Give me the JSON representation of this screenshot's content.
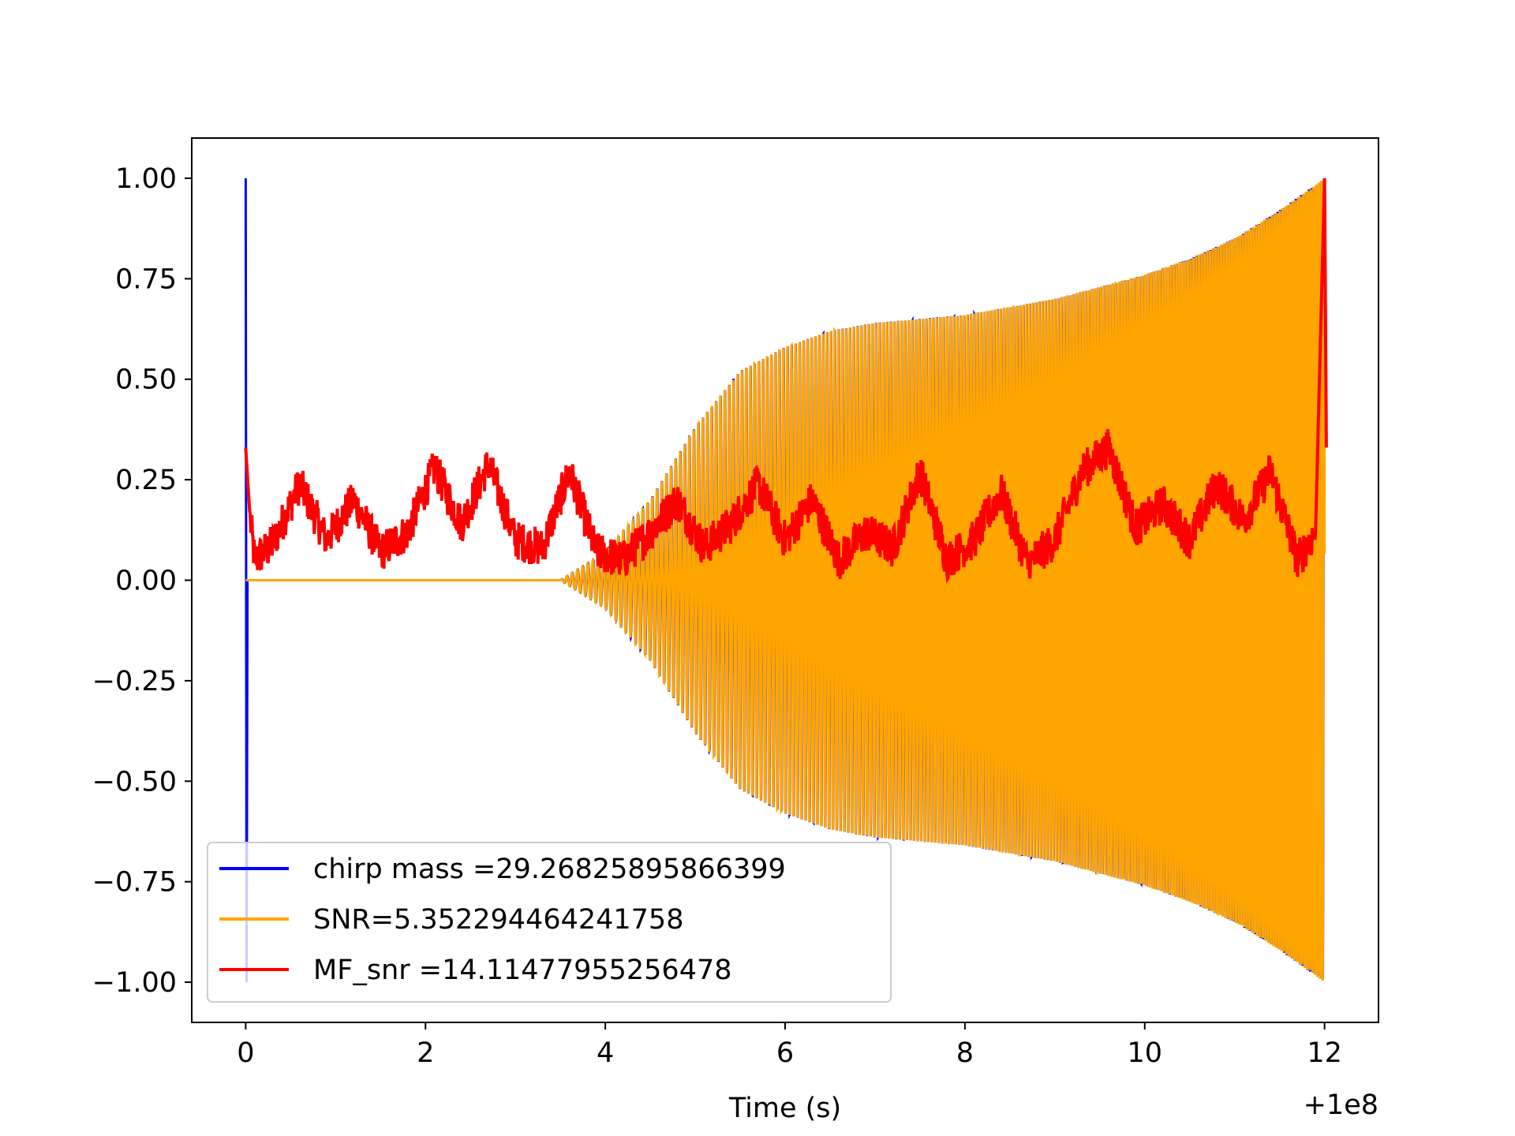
{
  "chart_data": {
    "type": "line",
    "title": "",
    "xlabel": "Time (s)",
    "ylabel": "",
    "x_offset_label": "+1e8",
    "xlim": [
      -0.6,
      12.6
    ],
    "ylim": [
      -1.1,
      1.1
    ],
    "x_ticks": [
      0,
      2,
      4,
      6,
      8,
      10,
      12
    ],
    "x_tick_labels": [
      "0",
      "2",
      "4",
      "6",
      "8",
      "10",
      "12"
    ],
    "y_ticks": [
      1.0,
      0.75,
      0.5,
      0.25,
      0.0,
      -0.25,
      -0.5,
      -0.75,
      -1.0
    ],
    "y_tick_labels": [
      "1.00",
      "0.75",
      "0.50",
      "0.25",
      "0.00",
      "−0.25",
      "−0.50",
      "−0.75",
      "−1.00"
    ],
    "grid": false,
    "legend_position": "lower-left",
    "series": [
      {
        "name": "chirp mass =29.26825895866399",
        "color": "#0000ff",
        "description_points": {
          "x": [
            0,
            0.5,
            1,
            1.5,
            2,
            2.5,
            3,
            3.5,
            4,
            4.5,
            5,
            5.5,
            6,
            6.5,
            7,
            7.5,
            8,
            8.5,
            9,
            9.5,
            10,
            10.5,
            11,
            11.5,
            12
          ],
          "envelope": [
            1.0,
            0.0,
            0.0,
            0.0,
            0.0,
            0.0,
            0.0,
            0.0,
            0.07,
            0.2,
            0.38,
            0.52,
            0.58,
            0.62,
            0.64,
            0.65,
            0.66,
            0.68,
            0.7,
            0.73,
            0.76,
            0.8,
            0.85,
            0.92,
            1.0
          ]
        }
      },
      {
        "name": "SNR=5.352294464241758",
        "color": "#ffa500",
        "description_points": {
          "x": [
            0,
            0.5,
            1,
            1.5,
            2,
            2.5,
            3,
            3.5,
            4,
            4.5,
            5,
            5.5,
            6,
            6.5,
            7,
            7.5,
            8,
            8.5,
            9,
            9.5,
            10,
            10.5,
            11,
            11.5,
            12
          ],
          "envelope": [
            0.0,
            0.0,
            0.0,
            0.0,
            0.0,
            0.0,
            0.0,
            0.0,
            0.07,
            0.2,
            0.38,
            0.52,
            0.58,
            0.62,
            0.64,
            0.65,
            0.66,
            0.68,
            0.7,
            0.73,
            0.76,
            0.8,
            0.85,
            0.92,
            1.0
          ]
        }
      },
      {
        "name": "MF_snr =14.11477955256478",
        "color": "#ff0000",
        "x": [
          0,
          0.05,
          0.1,
          0.3,
          0.6,
          0.9,
          1.2,
          1.5,
          1.8,
          2.1,
          2.4,
          2.7,
          3.0,
          3.3,
          3.6,
          3.9,
          4.2,
          4.5,
          4.8,
          5.1,
          5.4,
          5.7,
          6.0,
          6.3,
          6.6,
          6.9,
          7.2,
          7.5,
          7.8,
          8.1,
          8.4,
          8.7,
          9.0,
          9.3,
          9.6,
          9.9,
          10.2,
          10.5,
          10.8,
          11.1,
          11.4,
          11.7,
          11.9,
          12.0
        ],
        "y": [
          0.33,
          0.15,
          0.05,
          0.09,
          0.24,
          0.1,
          0.2,
          0.07,
          0.12,
          0.28,
          0.14,
          0.29,
          0.1,
          0.08,
          0.27,
          0.07,
          0.05,
          0.12,
          0.2,
          0.08,
          0.14,
          0.24,
          0.1,
          0.2,
          0.05,
          0.12,
          0.08,
          0.27,
          0.05,
          0.1,
          0.22,
          0.04,
          0.1,
          0.27,
          0.33,
          0.13,
          0.19,
          0.1,
          0.24,
          0.15,
          0.27,
          0.05,
          0.12,
          1.0
        ]
      }
    ]
  }
}
